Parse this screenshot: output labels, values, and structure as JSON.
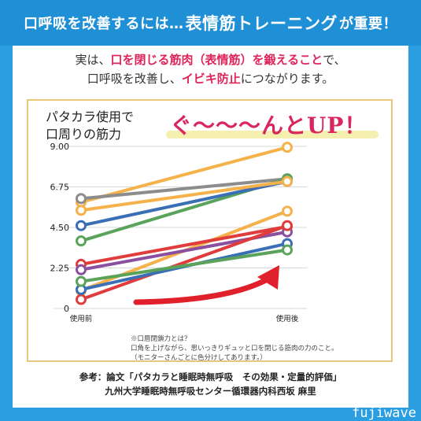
{
  "header": {
    "part1": "口呼吸を改善するには…",
    "part2": "表情筋トレーニング",
    "part3": "が重要！"
  },
  "intro": {
    "l1a": "実は、",
    "l1b": "口を閉じる筋肉（表情筋）を鍛えること",
    "l1c": "で、",
    "l2a": "口呼吸を改善し、",
    "l2b": "イビキ防止",
    "l2c": "につながります。"
  },
  "chart_title_line1": "パタカラ使用で",
  "chart_title_line2": "口周りの筋力",
  "up_text": "ぐ～～～んとUP！",
  "note": {
    "l1": "※口唇閉鎖力とは？",
    "l2": "口角を上げながら、思いっきりギュッと口を閉じる筋肉の力のこと。",
    "l3": "（モニターさんごとに色分けしてあります。）"
  },
  "footer": {
    "l1": "参考：論文「パタカラと睡眠時無呼吸　その効果・定量的評価」",
    "l2": "九州大学睡眠時無呼吸センター循環器内科西坂 麻里"
  },
  "watermark": "fujiwave",
  "chart_data": {
    "type": "line",
    "categories": [
      "使用前",
      "使用後"
    ],
    "ylim": [
      0,
      9.0
    ],
    "yticks": [
      "0",
      "2.25",
      "4.50",
      "6.75",
      "9.00"
    ],
    "ytick_values": [
      0,
      2.25,
      4.5,
      6.75,
      9.0
    ],
    "series": [
      {
        "color": "#f5b14a",
        "values": [
          5.9,
          8.95
        ]
      },
      {
        "color": "#8c8c8c",
        "values": [
          6.1,
          7.2
        ]
      },
      {
        "color": "#5aa35a",
        "values": [
          3.75,
          7.2
        ]
      },
      {
        "color": "#3a6fb5",
        "values": [
          4.6,
          7.05
        ]
      },
      {
        "color": "#f5b14a",
        "values": [
          5.45,
          7.05
        ]
      },
      {
        "color": "#f5b14a",
        "values": [
          1.0,
          5.4
        ]
      },
      {
        "color": "#e03c3c",
        "values": [
          2.45,
          4.55
        ]
      },
      {
        "color": "#8a4f9e",
        "values": [
          2.15,
          4.25
        ]
      },
      {
        "color": "#e03c3c",
        "values": [
          0.5,
          4.6
        ]
      },
      {
        "color": "#3a6fb5",
        "values": [
          1.05,
          3.6
        ]
      },
      {
        "color": "#5aa35a",
        "values": [
          1.5,
          3.25
        ]
      }
    ]
  }
}
